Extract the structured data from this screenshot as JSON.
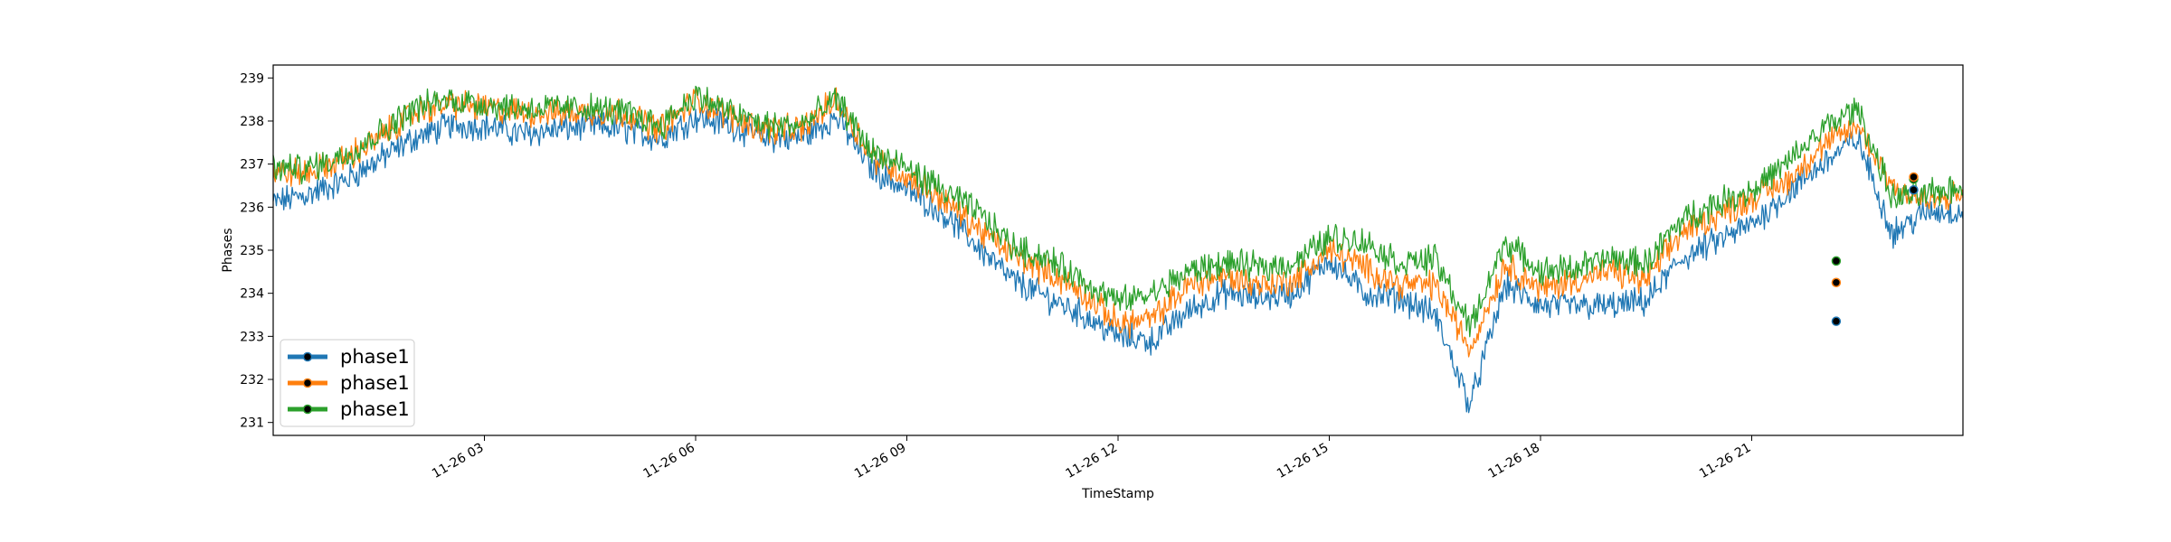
{
  "chart_data": {
    "type": "line",
    "title": "",
    "xlabel": "TimeStamp",
    "ylabel": "Phases",
    "xlim": [
      "2021-11-26 00:00",
      "2021-11-26 23:59"
    ],
    "ylim": [
      230.7,
      239.3
    ],
    "yticks": [
      231,
      232,
      233,
      234,
      235,
      236,
      237,
      238,
      239
    ],
    "xtick_hours": [
      3,
      6,
      9,
      12,
      15,
      18,
      21
    ],
    "xtick_labels": [
      "11-26 03",
      "11-26 06",
      "11-26 09",
      "11-26 12",
      "11-26 15",
      "11-26 18",
      "11-26 21"
    ],
    "grid": false,
    "legend_position": "lower-left",
    "x_hours": [
      0.0,
      0.5,
      1.0,
      1.5,
      2.0,
      2.5,
      3.0,
      3.5,
      4.0,
      4.5,
      5.0,
      5.5,
      6.0,
      6.5,
      7.0,
      7.5,
      8.0,
      8.5,
      9.0,
      9.5,
      10.0,
      10.5,
      11.0,
      11.5,
      12.0,
      12.5,
      13.0,
      13.5,
      14.0,
      14.5,
      15.0,
      15.5,
      16.0,
      16.5,
      17.0,
      17.5,
      18.0,
      18.5,
      19.0,
      19.5,
      20.0,
      20.5,
      21.0,
      21.5,
      22.0,
      22.5,
      23.0,
      23.5,
      24.0
    ],
    "series": [
      {
        "name": "phase1",
        "color": "#1f77b4",
        "values": [
          236.1,
          236.3,
          236.6,
          237.1,
          237.6,
          237.9,
          237.9,
          237.7,
          237.8,
          237.9,
          237.8,
          237.6,
          238.1,
          237.9,
          237.6,
          237.6,
          238.1,
          236.9,
          236.4,
          235.9,
          235.1,
          234.3,
          233.9,
          233.5,
          233.0,
          232.9,
          233.6,
          234.0,
          233.9,
          234.0,
          234.8,
          234.0,
          233.9,
          233.5,
          231.4,
          234.2,
          233.7,
          233.7,
          233.7,
          233.8,
          234.8,
          235.2,
          235.6,
          236.3,
          237.0,
          237.6,
          235.4,
          235.9,
          235.9
        ]
      },
      {
        "name": "phase1",
        "color": "#ff7f0e",
        "values": [
          236.8,
          236.8,
          237.1,
          237.6,
          238.2,
          238.4,
          238.3,
          238.2,
          238.2,
          238.2,
          238.2,
          237.8,
          238.5,
          238.1,
          237.8,
          237.8,
          238.5,
          237.2,
          236.7,
          236.2,
          235.5,
          234.9,
          234.5,
          234.0,
          233.3,
          233.4,
          234.2,
          234.4,
          234.2,
          234.3,
          235.0,
          234.6,
          234.2,
          234.2,
          232.7,
          234.7,
          234.1,
          234.3,
          234.5,
          234.3,
          235.4,
          235.8,
          236.2,
          236.6,
          237.4,
          237.9,
          236.5,
          236.1,
          236.3
        ]
      },
      {
        "name": "phase1",
        "color": "#2ca02c",
        "values": [
          236.9,
          236.9,
          237.2,
          237.7,
          238.3,
          238.5,
          238.4,
          238.3,
          238.3,
          238.3,
          238.2,
          237.9,
          238.6,
          238.2,
          237.9,
          237.9,
          238.5,
          237.3,
          236.9,
          236.4,
          235.9,
          235.1,
          234.8,
          234.3,
          233.8,
          234.0,
          234.5,
          234.7,
          234.6,
          234.7,
          235.3,
          235.2,
          234.7,
          234.8,
          233.2,
          235.2,
          234.5,
          234.6,
          234.8,
          234.7,
          235.7,
          236.1,
          236.4,
          237.0,
          237.8,
          238.3,
          236.2,
          236.3,
          236.5
        ]
      }
    ],
    "markers": [
      {
        "x_hour": 22.2,
        "value": 234.75,
        "color": "#2ca02c"
      },
      {
        "x_hour": 22.2,
        "value": 234.25,
        "color": "#ff7f0e"
      },
      {
        "x_hour": 22.2,
        "value": 233.35,
        "color": "#1f77b4"
      },
      {
        "x_hour": 23.3,
        "value": 236.65,
        "color": "#2ca02c"
      },
      {
        "x_hour": 23.3,
        "value": 236.7,
        "color": "#ff7f0e"
      },
      {
        "x_hour": 23.3,
        "value": 236.4,
        "color": "#1f77b4"
      }
    ],
    "legend": [
      {
        "label": "phase1",
        "color": "#1f77b4"
      },
      {
        "label": "phase1",
        "color": "#ff7f0e"
      },
      {
        "label": "phase1",
        "color": "#2ca02c"
      }
    ]
  }
}
